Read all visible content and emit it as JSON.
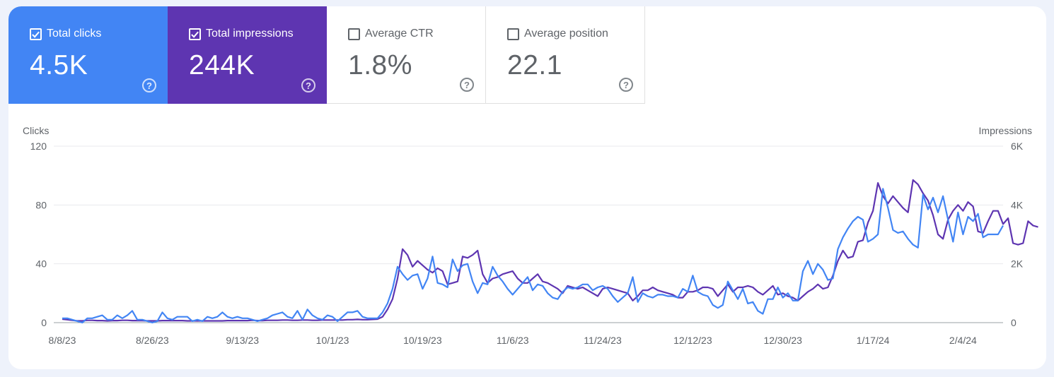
{
  "tiles": [
    {
      "label": "Total clicks",
      "value": "4.5K",
      "checked": true,
      "color": "#4285f4"
    },
    {
      "label": "Total impressions",
      "value": "244K",
      "checked": true,
      "color": "#5e35b1"
    },
    {
      "label": "Average CTR",
      "value": "1.8%",
      "checked": false
    },
    {
      "label": "Average position",
      "value": "22.1",
      "checked": false
    }
  ],
  "chart_data": {
    "type": "line",
    "left_axis": {
      "label": "Clicks",
      "ticks": [
        "0",
        "40",
        "80",
        "120"
      ],
      "range": [
        0,
        120
      ]
    },
    "right_axis": {
      "label": "Impressions",
      "ticks": [
        "0",
        "2K",
        "4K",
        "6K"
      ],
      "range": [
        0,
        6000
      ]
    },
    "x_ticks": [
      "8/8/23",
      "8/26/23",
      "9/13/23",
      "10/1/23",
      "10/19/23",
      "11/6/23",
      "11/24/23",
      "12/12/23",
      "12/30/23",
      "1/17/24",
      "2/4/24"
    ],
    "grid": true,
    "series": [
      {
        "name": "Total clicks",
        "axis": "left",
        "color": "#4285f4",
        "values": [
          3,
          3,
          2,
          1,
          0,
          3,
          3,
          4,
          5,
          2,
          2,
          5,
          3,
          5,
          8,
          2,
          2,
          1,
          0,
          1,
          7,
          3,
          2,
          4,
          4,
          4,
          1,
          2,
          1,
          4,
          3,
          4,
          7,
          4,
          3,
          4,
          3,
          3,
          2,
          1,
          2,
          3,
          5,
          6,
          7,
          4,
          3,
          8,
          2,
          9,
          5,
          3,
          2,
          5,
          4,
          1,
          4,
          7,
          7,
          8,
          4,
          3,
          3,
          3,
          7,
          13,
          23,
          38,
          33,
          29,
          32,
          33,
          23,
          30,
          45,
          27,
          26,
          24,
          43,
          35,
          39,
          40,
          28,
          20,
          27,
          26,
          38,
          32,
          28,
          23,
          19,
          23,
          27,
          31,
          22,
          26,
          25,
          20,
          17,
          16,
          21,
          24,
          23,
          24,
          26,
          26,
          22,
          24,
          25,
          23,
          18,
          14,
          17,
          20,
          31,
          14,
          20,
          18,
          17,
          19,
          19,
          18,
          18,
          17,
          23,
          21,
          32,
          21,
          19,
          18,
          12,
          10,
          12,
          28,
          22,
          16,
          23,
          13,
          14,
          8,
          6,
          16,
          16,
          24,
          17,
          20,
          15,
          15,
          35,
          42,
          33,
          40,
          36,
          29,
          30,
          50,
          58,
          64,
          69,
          72,
          70,
          55,
          57,
          60,
          91,
          78,
          63,
          61,
          62,
          57,
          53,
          51,
          87,
          77,
          85,
          75,
          86,
          70,
          55,
          75,
          60,
          72,
          69,
          74,
          58,
          60,
          60,
          60,
          66
        ]
      },
      {
        "name": "Total impressions",
        "axis": "right",
        "color": "#5e35b1",
        "values": [
          120,
          100,
          80,
          60,
          60,
          80,
          80,
          70,
          70,
          60,
          70,
          70,
          80,
          80,
          70,
          70,
          70,
          60,
          60,
          60,
          70,
          70,
          70,
          70,
          70,
          60,
          60,
          60,
          60,
          60,
          60,
          60,
          60,
          70,
          70,
          70,
          70,
          70,
          80,
          70,
          70,
          80,
          80,
          80,
          90,
          90,
          80,
          80,
          90,
          90,
          80,
          80,
          90,
          90,
          90,
          90,
          90,
          100,
          100,
          110,
          100,
          100,
          110,
          120,
          200,
          450,
          800,
          1500,
          2500,
          2300,
          1900,
          2100,
          1950,
          1800,
          1700,
          1850,
          1750,
          1300,
          1350,
          1400,
          2250,
          2200,
          2300,
          2450,
          1650,
          1350,
          1500,
          1550,
          1650,
          1700,
          1750,
          1500,
          1350,
          1350,
          1500,
          1650,
          1400,
          1350,
          1250,
          1150,
          1000,
          1250,
          1200,
          1150,
          1200,
          1100,
          1000,
          900,
          1150,
          1200,
          1150,
          1100,
          1050,
          1000,
          750,
          900,
          1100,
          1100,
          1200,
          1100,
          1050,
          1000,
          950,
          850,
          850,
          1050,
          1050,
          1100,
          1200,
          1200,
          1150,
          900,
          1100,
          1300,
          1050,
          1200,
          1200,
          1250,
          1200,
          1050,
          950,
          1100,
          1250,
          950,
          1000,
          900,
          850,
          750,
          900,
          1050,
          1150,
          1300,
          1150,
          1200,
          1600,
          2100,
          2450,
          2200,
          2250,
          2750,
          2800,
          3400,
          3800,
          4750,
          4300,
          4050,
          4300,
          4100,
          3900,
          3750,
          4850,
          4700,
          4400,
          4150,
          3650,
          3000,
          2850,
          3500,
          3800,
          4000,
          3800,
          4100,
          3950,
          3100,
          3050,
          3450,
          3800,
          3800,
          3350,
          3550,
          2700,
          2650,
          2700,
          3450,
          3300,
          3250
        ]
      }
    ]
  }
}
